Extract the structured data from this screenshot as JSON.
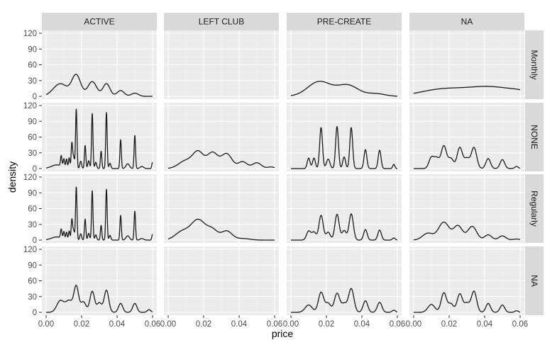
{
  "chart_data": {
    "type": "line",
    "subtype": "density-facet-grid",
    "xlabel": "price",
    "ylabel": "density",
    "xlim": [
      0,
      0.06
    ],
    "ylim": [
      0,
      120
    ],
    "x_ticks": [
      0,
      0.02,
      0.04,
      0.06
    ],
    "x_tick_labels": [
      "0.00",
      "0.02",
      "0.04",
      "0.06"
    ],
    "y_ticks": [
      0,
      30,
      60,
      90,
      120
    ],
    "y_tick_labels": [
      "0",
      "30",
      "60",
      "90",
      "120"
    ],
    "grid": true,
    "columns": [
      "ACTIVE",
      "LEFT CLUB",
      "PRE-CREATE",
      "NA"
    ],
    "rows": [
      "Monthly",
      "NONE",
      "Regularly",
      "NA"
    ],
    "line_color": "#1a1a1a",
    "panel_background": "#ebebeb",
    "strip_background": "#d9d9d9",
    "panels": [
      {
        "row": "Monthly",
        "col": "ACTIVE",
        "peaks": [
          [
            0.008,
            24,
            0.004
          ],
          [
            0.017,
            40,
            0.0025
          ],
          [
            0.026,
            28,
            0.0025
          ],
          [
            0.034,
            24,
            0.002
          ],
          [
            0.042,
            11,
            0.002
          ],
          [
            0.05,
            6,
            0.002
          ]
        ]
      },
      {
        "row": "Monthly",
        "col": "LEFT CLUB",
        "peaks": []
      },
      {
        "row": "Monthly",
        "col": "PRE-CREATE",
        "peaks": [
          [
            0.016,
            28,
            0.0065
          ],
          [
            0.032,
            21,
            0.006
          ],
          [
            0.048,
            5,
            0.005
          ]
        ]
      },
      {
        "row": "Monthly",
        "col": "NA",
        "peaks": [
          [
            0.015,
            12,
            0.012
          ],
          [
            0.043,
            18,
            0.014
          ],
          [
            0.061,
            4,
            0.006
          ]
        ]
      },
      {
        "row": "NONE",
        "col": "ACTIVE",
        "peaks": [
          [
            0.006,
            7,
            0.003
          ],
          [
            0.0085,
            20,
            0.0004
          ],
          [
            0.01,
            16,
            0.0004
          ],
          [
            0.0115,
            17,
            0.0004
          ],
          [
            0.013,
            20,
            0.0004
          ],
          [
            0.0145,
            47,
            0.0004
          ],
          [
            0.0155,
            22,
            0.0005
          ],
          [
            0.017,
            113,
            0.0004
          ],
          [
            0.0195,
            14,
            0.0005
          ],
          [
            0.022,
            44,
            0.0004
          ],
          [
            0.024,
            15,
            0.0005
          ],
          [
            0.026,
            105,
            0.0004
          ],
          [
            0.028,
            12,
            0.0005
          ],
          [
            0.031,
            33,
            0.0004
          ],
          [
            0.034,
            107,
            0.0004
          ],
          [
            0.036,
            10,
            0.0005
          ],
          [
            0.042,
            55,
            0.0004
          ],
          [
            0.046,
            9,
            0.001
          ],
          [
            0.05,
            63,
            0.0004
          ],
          [
            0.054,
            4,
            0.001
          ],
          [
            0.06,
            12,
            0.0004
          ]
        ]
      },
      {
        "row": "NONE",
        "col": "LEFT CLUB",
        "peaks": [
          [
            0.01,
            15,
            0.004
          ],
          [
            0.017,
            30,
            0.003
          ],
          [
            0.025,
            30,
            0.003
          ],
          [
            0.033,
            28,
            0.003
          ],
          [
            0.042,
            13,
            0.0025
          ],
          [
            0.05,
            11,
            0.0025
          ],
          [
            0.058,
            3,
            0.002
          ]
        ]
      },
      {
        "row": "NONE",
        "col": "PRE-CREATE",
        "peaks": [
          [
            0.01,
            20,
            0.0008
          ],
          [
            0.013,
            20,
            0.0008
          ],
          [
            0.017,
            78,
            0.0008
          ],
          [
            0.021,
            18,
            0.001
          ],
          [
            0.026,
            80,
            0.0008
          ],
          [
            0.03,
            22,
            0.0008
          ],
          [
            0.034,
            78,
            0.0008
          ],
          [
            0.042,
            36,
            0.0008
          ],
          [
            0.05,
            35,
            0.0008
          ],
          [
            0.058,
            8,
            0.0006
          ]
        ]
      },
      {
        "row": "NONE",
        "col": "NA",
        "peaks": [
          [
            0.01,
            21,
            0.0014
          ],
          [
            0.013,
            19,
            0.0014
          ],
          [
            0.017,
            43,
            0.0015
          ],
          [
            0.021,
            19,
            0.0015
          ],
          [
            0.026,
            40,
            0.0015
          ],
          [
            0.03,
            19,
            0.0015
          ],
          [
            0.034,
            40,
            0.0015
          ],
          [
            0.042,
            19,
            0.0013
          ],
          [
            0.05,
            17,
            0.0013
          ],
          [
            0.058,
            4,
            0.001
          ]
        ]
      },
      {
        "row": "Regularly",
        "col": "ACTIVE",
        "peaks": [
          [
            0.006,
            6,
            0.003
          ],
          [
            0.0085,
            17,
            0.0004
          ],
          [
            0.01,
            14,
            0.0004
          ],
          [
            0.0115,
            14,
            0.0004
          ],
          [
            0.013,
            17,
            0.0004
          ],
          [
            0.0145,
            38,
            0.0004
          ],
          [
            0.0155,
            18,
            0.0005
          ],
          [
            0.017,
            101,
            0.0004
          ],
          [
            0.0195,
            12,
            0.0005
          ],
          [
            0.022,
            40,
            0.0004
          ],
          [
            0.024,
            13,
            0.0005
          ],
          [
            0.026,
            94,
            0.0004
          ],
          [
            0.028,
            10,
            0.0005
          ],
          [
            0.031,
            28,
            0.0004
          ],
          [
            0.034,
            97,
            0.0004
          ],
          [
            0.036,
            9,
            0.0005
          ],
          [
            0.042,
            47,
            0.0004
          ],
          [
            0.046,
            8,
            0.001
          ],
          [
            0.05,
            55,
            0.0004
          ],
          [
            0.054,
            3,
            0.001
          ],
          [
            0.06,
            11,
            0.0004
          ]
        ]
      },
      {
        "row": "Regularly",
        "col": "LEFT CLUB",
        "peaks": [
          [
            0.008,
            16,
            0.004
          ],
          [
            0.017,
            38,
            0.004
          ],
          [
            0.025,
            18,
            0.003
          ],
          [
            0.033,
            17,
            0.003
          ],
          [
            0.042,
            3,
            0.004
          ]
        ]
      },
      {
        "row": "Regularly",
        "col": "PRE-CREATE",
        "peaks": [
          [
            0.01,
            17,
            0.0012
          ],
          [
            0.013,
            15,
            0.0012
          ],
          [
            0.017,
            47,
            0.0012
          ],
          [
            0.021,
            15,
            0.0012
          ],
          [
            0.026,
            49,
            0.0012
          ],
          [
            0.03,
            18,
            0.0012
          ],
          [
            0.034,
            50,
            0.0012
          ],
          [
            0.042,
            20,
            0.001
          ],
          [
            0.05,
            19,
            0.001
          ],
          [
            0.058,
            4,
            0.0008
          ]
        ]
      },
      {
        "row": "Regularly",
        "col": "NA",
        "peaks": [
          [
            0.008,
            13,
            0.003
          ],
          [
            0.017,
            34,
            0.003
          ],
          [
            0.025,
            27,
            0.0025
          ],
          [
            0.033,
            26,
            0.0025
          ],
          [
            0.042,
            10,
            0.002
          ],
          [
            0.05,
            8,
            0.002
          ],
          [
            0.058,
            2,
            0.002
          ]
        ]
      },
      {
        "row": "NA",
        "col": "ACTIVE",
        "peaks": [
          [
            0.008,
            22,
            0.002
          ],
          [
            0.013,
            22,
            0.002
          ],
          [
            0.017,
            48,
            0.0013
          ],
          [
            0.021,
            20,
            0.0015
          ],
          [
            0.026,
            40,
            0.0013
          ],
          [
            0.03,
            18,
            0.0013
          ],
          [
            0.034,
            42,
            0.0013
          ],
          [
            0.042,
            17,
            0.0012
          ],
          [
            0.05,
            17,
            0.0012
          ],
          [
            0.058,
            5,
            0.001
          ]
        ]
      },
      {
        "row": "NA",
        "col": "LEFT CLUB",
        "peaks": []
      },
      {
        "row": "NA",
        "col": "PRE-CREATE",
        "peaks": [
          [
            0.01,
            14,
            0.002
          ],
          [
            0.017,
            38,
            0.0015
          ],
          [
            0.021,
            17,
            0.0015
          ],
          [
            0.026,
            36,
            0.0015
          ],
          [
            0.03,
            16,
            0.0015
          ],
          [
            0.034,
            45,
            0.0015
          ],
          [
            0.042,
            22,
            0.0013
          ],
          [
            0.05,
            19,
            0.0013
          ],
          [
            0.058,
            4,
            0.001
          ]
        ]
      },
      {
        "row": "NA",
        "col": "NA",
        "peaks": [
          [
            0.01,
            15,
            0.002
          ],
          [
            0.017,
            37,
            0.0015
          ],
          [
            0.021,
            16,
            0.0015
          ],
          [
            0.026,
            35,
            0.0015
          ],
          [
            0.03,
            17,
            0.0015
          ],
          [
            0.034,
            40,
            0.0015
          ],
          [
            0.042,
            17,
            0.0013
          ],
          [
            0.05,
            14,
            0.0013
          ],
          [
            0.058,
            3,
            0.001
          ]
        ]
      }
    ]
  }
}
